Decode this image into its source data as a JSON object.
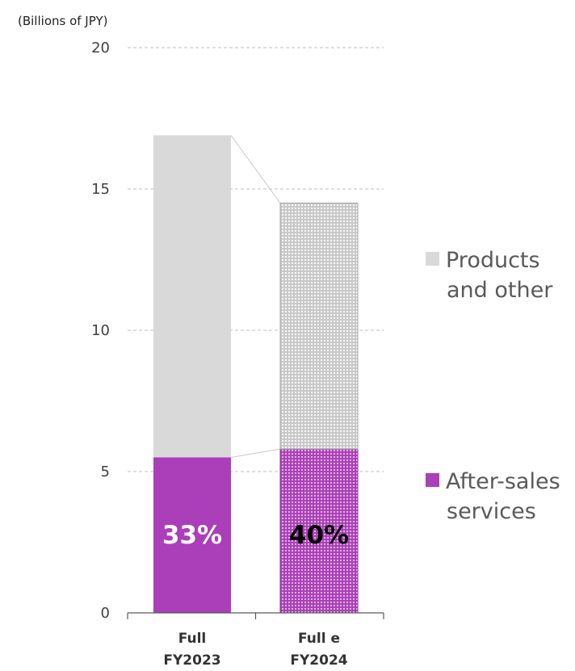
{
  "chart_data": {
    "type": "bar",
    "stacked": true,
    "unit_label": "(Billions of JPY)",
    "categories": [
      {
        "line1": "Full",
        "line2": "FY2023"
      },
      {
        "line1": "Full e",
        "line2": "FY2024"
      }
    ],
    "y_ticks": [
      "0",
      "5",
      "10",
      "15",
      "20"
    ],
    "ylim": [
      0,
      20
    ],
    "grid": "dashed horizontal",
    "legend_position": "right",
    "series": [
      {
        "name": "After-sales services",
        "legend_lines": [
          "After-sales",
          "services"
        ],
        "values": [
          5.5,
          5.8
        ],
        "data_labels": [
          "33%",
          "40%"
        ],
        "color": "#ab3eb9",
        "label_colors": [
          "#ffffff",
          "#000000"
        ]
      },
      {
        "name": "Products and other",
        "legend_lines": [
          "Products",
          "and other"
        ],
        "values": [
          11.4,
          8.7
        ],
        "color": "#d9d9d9"
      }
    ],
    "second_bar_patterned": true
  }
}
